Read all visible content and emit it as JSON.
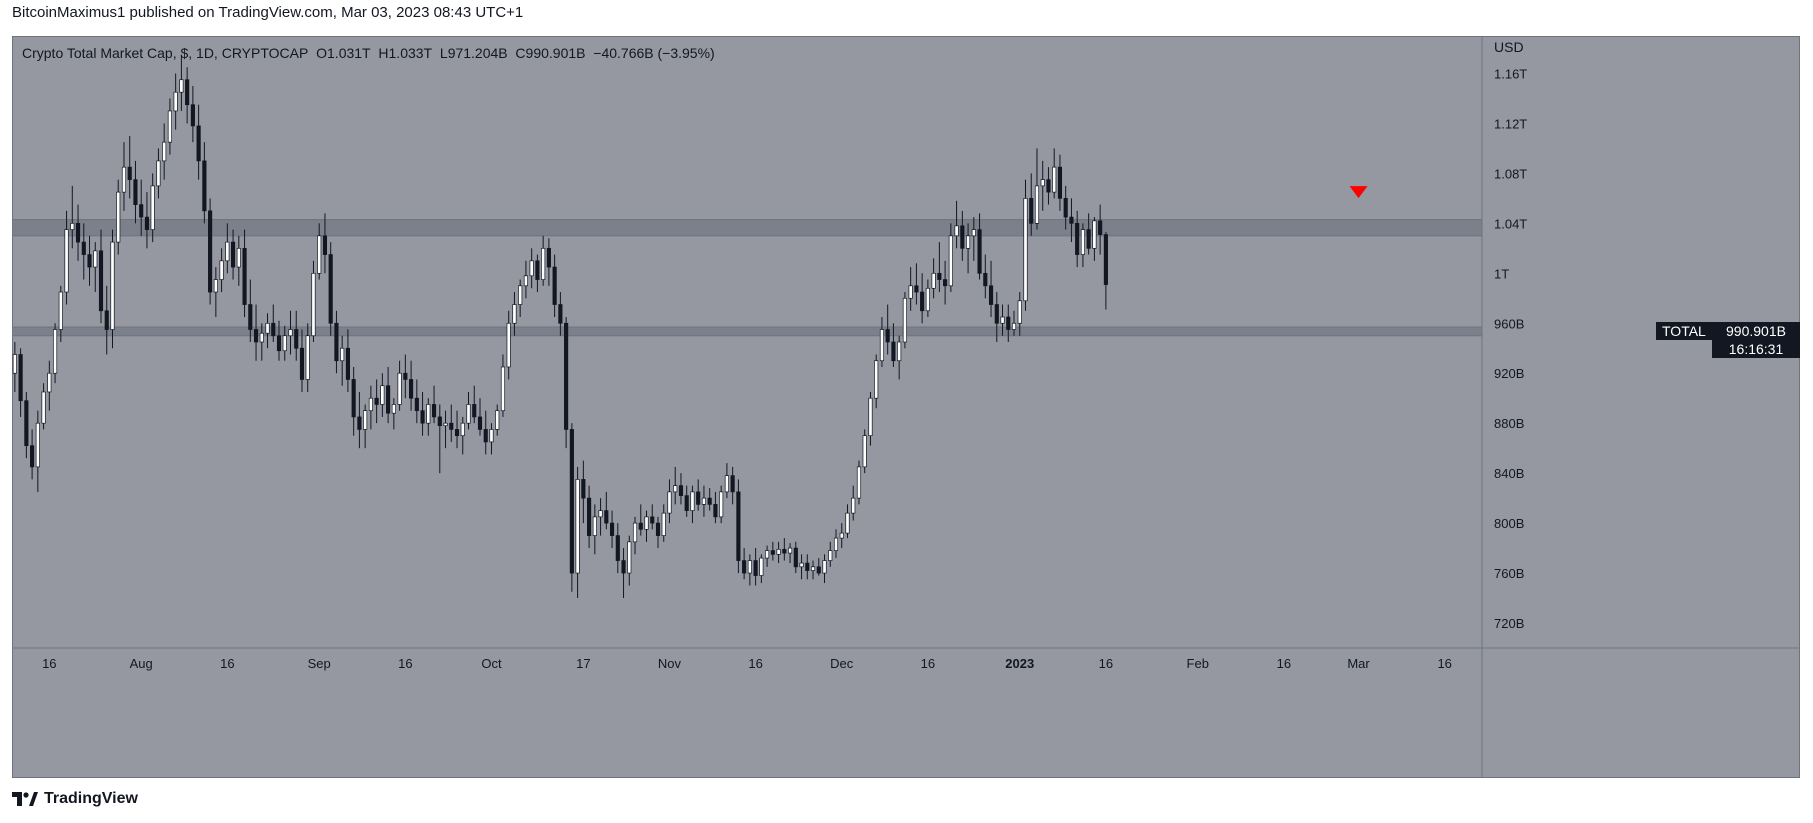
{
  "header": {
    "author": "BitcoinMaximus1",
    "published_text": "published on TradingView.com, Mar 03, 2023 08:43 UTC+1"
  },
  "legend": {
    "symbol": "Crypto Total Market Cap, $, 1D, CRYPTOCAP",
    "o_label": "O",
    "o_value": "1.031T",
    "h_label": "H",
    "h_value": "1.033T",
    "l_label": "L",
    "l_value": "971.204B",
    "c_label": "C",
    "c_value": "990.901B",
    "change": "−40.766B (−3.95%)"
  },
  "price_scale": {
    "currency": "USD",
    "ticks": [
      "1.16T",
      "1.12T",
      "1.08T",
      "1.04T",
      "1T",
      "960B",
      "920B",
      "880B",
      "840B",
      "800B",
      "760B",
      "720B"
    ]
  },
  "time_axis": {
    "ticks": [
      "16",
      "Aug",
      "16",
      "Sep",
      "16",
      "Oct",
      "17",
      "Nov",
      "16",
      "Dec",
      "16",
      "2023",
      "16",
      "Feb",
      "16",
      "Mar",
      "16"
    ]
  },
  "current_price": {
    "ticker": "TOTAL",
    "value": "990.901B",
    "countdown": "16:16:31"
  },
  "footer": {
    "brand": "TradingView"
  },
  "colors": {
    "background": "#9598a1",
    "candle_up": "#ffffff",
    "candle_down": "#131722",
    "zone": "#787b86",
    "marker": "#ff0000"
  },
  "chart_data": {
    "type": "candlestick",
    "title": "Crypto Total Market Cap, $, 1D, CRYPTOCAP",
    "ylabel": "USD",
    "ylim": [
      700,
      1190
    ],
    "y_unit": "B",
    "x_range": [
      "2022-07-10",
      "2023-03-23"
    ],
    "first_date": "2022-07-10",
    "interval": "1D",
    "horizontal_zones": [
      [
        1030,
        1043
      ],
      [
        950,
        957
      ]
    ],
    "markers": [
      {
        "date": "2023-03-01",
        "value": 1065,
        "shape": "triangle-down"
      }
    ],
    "candles": [
      [
        920,
        945,
        905,
        935
      ],
      [
        935,
        940,
        885,
        898
      ],
      [
        898,
        905,
        852,
        862
      ],
      [
        862,
        875,
        835,
        845
      ],
      [
        845,
        890,
        825,
        880
      ],
      [
        880,
        912,
        875,
        905
      ],
      [
        905,
        930,
        890,
        920
      ],
      [
        920,
        960,
        912,
        955
      ],
      [
        955,
        990,
        945,
        985
      ],
      [
        985,
        1050,
        975,
        1035
      ],
      [
        1035,
        1070,
        1020,
        1040
      ],
      [
        1040,
        1055,
        1010,
        1025
      ],
      [
        1025,
        1040,
        995,
        1015
      ],
      [
        1015,
        1030,
        990,
        1005
      ],
      [
        1005,
        1025,
        985,
        1018
      ],
      [
        1018,
        1035,
        960,
        970
      ],
      [
        970,
        990,
        935,
        955
      ],
      [
        955,
        1035,
        940,
        1025
      ],
      [
        1025,
        1075,
        1015,
        1065
      ],
      [
        1065,
        1105,
        1050,
        1085
      ],
      [
        1085,
        1110,
        1060,
        1075
      ],
      [
        1075,
        1090,
        1040,
        1055
      ],
      [
        1055,
        1075,
        1030,
        1045
      ],
      [
        1045,
        1065,
        1020,
        1035
      ],
      [
        1035,
        1080,
        1025,
        1070
      ],
      [
        1070,
        1100,
        1060,
        1090
      ],
      [
        1090,
        1120,
        1075,
        1105
      ],
      [
        1105,
        1140,
        1095,
        1130
      ],
      [
        1130,
        1160,
        1115,
        1145
      ],
      [
        1145,
        1175,
        1130,
        1155
      ],
      [
        1155,
        1165,
        1120,
        1135
      ],
      [
        1135,
        1150,
        1105,
        1118
      ],
      [
        1118,
        1135,
        1075,
        1090
      ],
      [
        1090,
        1105,
        1040,
        1050
      ],
      [
        1050,
        1060,
        975,
        985
      ],
      [
        985,
        1005,
        965,
        995
      ],
      [
        995,
        1020,
        985,
        1010
      ],
      [
        1010,
        1040,
        1000,
        1025
      ],
      [
        1025,
        1035,
        995,
        1005
      ],
      [
        1005,
        1030,
        990,
        1020
      ],
      [
        1020,
        1035,
        965,
        975
      ],
      [
        975,
        995,
        945,
        955
      ],
      [
        955,
        975,
        930,
        945
      ],
      [
        945,
        960,
        930,
        952
      ],
      [
        952,
        968,
        940,
        960
      ],
      [
        960,
        975,
        945,
        950
      ],
      [
        950,
        962,
        930,
        938
      ],
      [
        938,
        958,
        930,
        950
      ],
      [
        950,
        970,
        935,
        955
      ],
      [
        955,
        970,
        930,
        940
      ],
      [
        940,
        955,
        905,
        915
      ],
      [
        915,
        960,
        905,
        950
      ],
      [
        950,
        1010,
        945,
        1000
      ],
      [
        1000,
        1040,
        995,
        1030
      ],
      [
        1030,
        1048,
        1000,
        1015
      ],
      [
        1015,
        1025,
        950,
        960
      ],
      [
        960,
        970,
        920,
        930
      ],
      [
        930,
        950,
        910,
        940
      ],
      [
        940,
        955,
        905,
        915
      ],
      [
        915,
        925,
        870,
        885
      ],
      [
        885,
        905,
        860,
        875
      ],
      [
        875,
        895,
        860,
        890
      ],
      [
        890,
        910,
        875,
        900
      ],
      [
        900,
        915,
        880,
        895
      ],
      [
        895,
        920,
        885,
        910
      ],
      [
        910,
        925,
        880,
        888
      ],
      [
        888,
        900,
        875,
        895
      ],
      [
        895,
        930,
        890,
        920
      ],
      [
        920,
        935,
        900,
        915
      ],
      [
        915,
        930,
        890,
        900
      ],
      [
        900,
        915,
        880,
        890
      ],
      [
        890,
        905,
        870,
        880
      ],
      [
        880,
        900,
        870,
        895
      ],
      [
        895,
        910,
        880,
        885
      ],
      [
        885,
        895,
        840,
        878
      ],
      [
        878,
        890,
        860,
        880
      ],
      [
        880,
        895,
        865,
        875
      ],
      [
        875,
        890,
        860,
        870
      ],
      [
        870,
        885,
        855,
        880
      ],
      [
        880,
        905,
        875,
        895
      ],
      [
        895,
        910,
        880,
        885
      ],
      [
        885,
        900,
        870,
        875
      ],
      [
        875,
        890,
        855,
        865
      ],
      [
        865,
        880,
        855,
        875
      ],
      [
        875,
        895,
        870,
        890
      ],
      [
        890,
        935,
        885,
        925
      ],
      [
        925,
        970,
        915,
        960
      ],
      [
        960,
        985,
        950,
        975
      ],
      [
        975,
        995,
        965,
        990
      ],
      [
        990,
        1010,
        980,
        998
      ],
      [
        998,
        1020,
        988,
        1010
      ],
      [
        1010,
        1015,
        985,
        995
      ],
      [
        995,
        1030,
        990,
        1020
      ],
      [
        1020,
        1028,
        990,
        1005
      ],
      [
        1005,
        1015,
        965,
        975
      ],
      [
        975,
        985,
        950,
        960
      ],
      [
        960,
        965,
        860,
        875
      ],
      [
        875,
        880,
        745,
        760
      ],
      [
        760,
        845,
        740,
        835
      ],
      [
        835,
        850,
        800,
        820
      ],
      [
        820,
        830,
        780,
        790
      ],
      [
        790,
        815,
        775,
        805
      ],
      [
        805,
        820,
        790,
        810
      ],
      [
        810,
        825,
        795,
        800
      ],
      [
        800,
        810,
        780,
        790
      ],
      [
        790,
        800,
        760,
        770
      ],
      [
        770,
        780,
        740,
        760
      ],
      [
        760,
        790,
        750,
        785
      ],
      [
        785,
        805,
        775,
        800
      ],
      [
        800,
        815,
        790,
        795
      ],
      [
        795,
        810,
        785,
        805
      ],
      [
        805,
        815,
        795,
        800
      ],
      [
        800,
        805,
        780,
        790
      ],
      [
        790,
        815,
        785,
        808
      ],
      [
        808,
        835,
        800,
        825
      ],
      [
        825,
        845,
        815,
        830
      ],
      [
        830,
        840,
        815,
        822
      ],
      [
        822,
        830,
        805,
        810
      ],
      [
        810,
        830,
        800,
        825
      ],
      [
        825,
        835,
        810,
        815
      ],
      [
        815,
        830,
        805,
        820
      ],
      [
        820,
        828,
        810,
        815
      ],
      [
        815,
        825,
        800,
        805
      ],
      [
        805,
        830,
        800,
        825
      ],
      [
        825,
        848,
        820,
        838
      ],
      [
        838,
        845,
        815,
        825
      ],
      [
        825,
        835,
        760,
        770
      ],
      [
        770,
        780,
        755,
        760
      ],
      [
        760,
        775,
        750,
        770
      ],
      [
        770,
        780,
        750,
        758
      ],
      [
        758,
        775,
        752,
        772
      ],
      [
        772,
        782,
        765,
        778
      ],
      [
        778,
        785,
        770,
        775
      ],
      [
        775,
        785,
        768,
        779
      ],
      [
        779,
        788,
        770,
        776
      ],
      [
        776,
        784,
        768,
        780
      ],
      [
        780,
        785,
        760,
        765
      ],
      [
        765,
        775,
        755,
        768
      ],
      [
        768,
        775,
        755,
        762
      ],
      [
        762,
        770,
        755,
        765
      ],
      [
        765,
        772,
        758,
        760
      ],
      [
        760,
        775,
        752,
        770
      ],
      [
        770,
        785,
        765,
        778
      ],
      [
        778,
        795,
        772,
        788
      ],
      [
        788,
        800,
        780,
        792
      ],
      [
        792,
        815,
        788,
        808
      ],
      [
        808,
        830,
        802,
        820
      ],
      [
        820,
        850,
        815,
        845
      ],
      [
        845,
        875,
        840,
        870
      ],
      [
        870,
        905,
        862,
        900
      ],
      [
        900,
        935,
        892,
        930
      ],
      [
        930,
        965,
        925,
        955
      ],
      [
        955,
        975,
        935,
        945
      ],
      [
        945,
        960,
        925,
        930
      ],
      [
        930,
        950,
        915,
        945
      ],
      [
        945,
        985,
        940,
        980
      ],
      [
        980,
        1005,
        970,
        990
      ],
      [
        990,
        1008,
        975,
        985
      ],
      [
        985,
        1000,
        960,
        970
      ],
      [
        970,
        995,
        965,
        988
      ],
      [
        988,
        1012,
        980,
        1000
      ],
      [
        1000,
        1025,
        985,
        995
      ],
      [
        995,
        1010,
        975,
        990
      ],
      [
        990,
        1040,
        985,
        1030
      ],
      [
        1030,
        1058,
        1020,
        1038
      ],
      [
        1038,
        1050,
        1010,
        1020
      ],
      [
        1020,
        1040,
        1000,
        1030
      ],
      [
        1030,
        1045,
        1010,
        1035
      ],
      [
        1035,
        1048,
        995,
        1000
      ],
      [
        1000,
        1015,
        980,
        990
      ],
      [
        990,
        1010,
        965,
        975
      ],
      [
        975,
        985,
        945,
        960
      ],
      [
        960,
        975,
        950,
        965
      ],
      [
        965,
        975,
        945,
        955
      ],
      [
        955,
        970,
        950,
        960
      ],
      [
        960,
        985,
        950,
        978
      ],
      [
        978,
        1075,
        970,
        1060
      ],
      [
        1060,
        1080,
        1030,
        1040
      ],
      [
        1040,
        1100,
        1035,
        1070
      ],
      [
        1070,
        1090,
        1050,
        1075
      ],
      [
        1075,
        1085,
        1055,
        1065
      ],
      [
        1065,
        1100,
        1060,
        1085
      ],
      [
        1085,
        1095,
        1050,
        1060
      ],
      [
        1060,
        1070,
        1035,
        1045
      ],
      [
        1045,
        1060,
        1025,
        1040
      ],
      [
        1040,
        1050,
        1005,
        1015
      ],
      [
        1015,
        1040,
        1005,
        1035
      ],
      [
        1035,
        1048,
        1015,
        1020
      ],
      [
        1020,
        1045,
        1010,
        1042
      ],
      [
        1042,
        1055,
        1015,
        1031
      ],
      [
        1031,
        1033,
        971,
        991
      ]
    ]
  }
}
